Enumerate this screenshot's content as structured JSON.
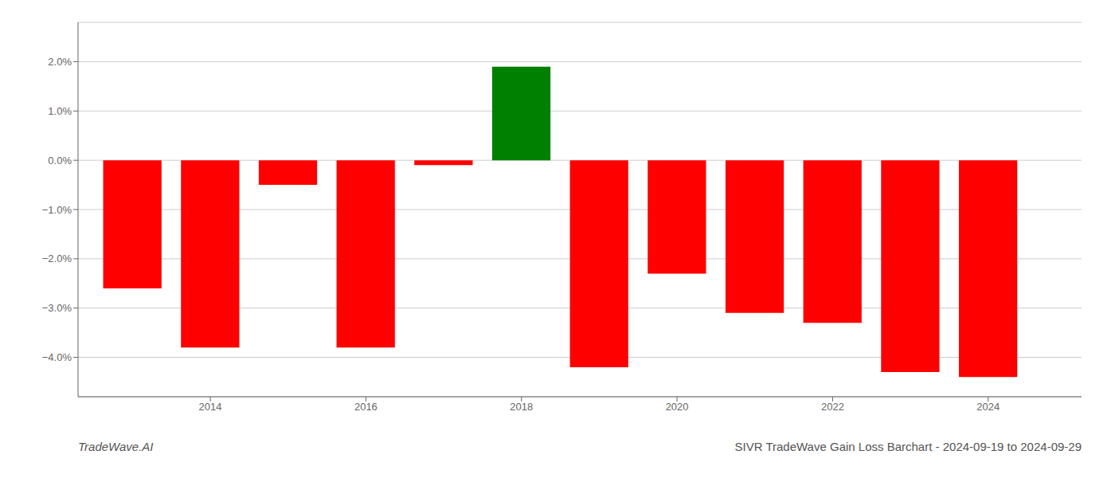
{
  "chart_data": {
    "type": "bar",
    "x": [
      2013,
      2014,
      2015,
      2016,
      2017,
      2018,
      2019,
      2020,
      2021,
      2022,
      2023,
      2024
    ],
    "values": [
      -0.026,
      -0.038,
      -0.005,
      -0.038,
      -0.001,
      0.019,
      -0.042,
      -0.023,
      -0.031,
      -0.033,
      -0.043,
      -0.044
    ],
    "colors": [
      "#ff0000",
      "#ff0000",
      "#ff0000",
      "#ff0000",
      "#ff0000",
      "#008000",
      "#ff0000",
      "#ff0000",
      "#ff0000",
      "#ff0000",
      "#ff0000",
      "#ff0000"
    ],
    "xlim": [
      2012.3,
      2025.2
    ],
    "xticks": [
      2014,
      2016,
      2018,
      2020,
      2022,
      2024
    ],
    "ylim": [
      -0.048,
      0.028
    ],
    "yticks": [
      {
        "value": -0.04,
        "label": "−4.0%"
      },
      {
        "value": -0.03,
        "label": "−3.0%"
      },
      {
        "value": -0.02,
        "label": "−2.0%"
      },
      {
        "value": -0.01,
        "label": "−1.0%"
      },
      {
        "value": 0,
        "label": "0.0%"
      },
      {
        "value": 0.01,
        "label": "1.0%"
      },
      {
        "value": 0.02,
        "label": "2.0%"
      }
    ],
    "grid": true,
    "annotations": [
      "TradeWave.AI",
      "SIVR TradeWave Gain Loss Barchart - 2024-09-19 to 2024-09-29"
    ]
  }
}
